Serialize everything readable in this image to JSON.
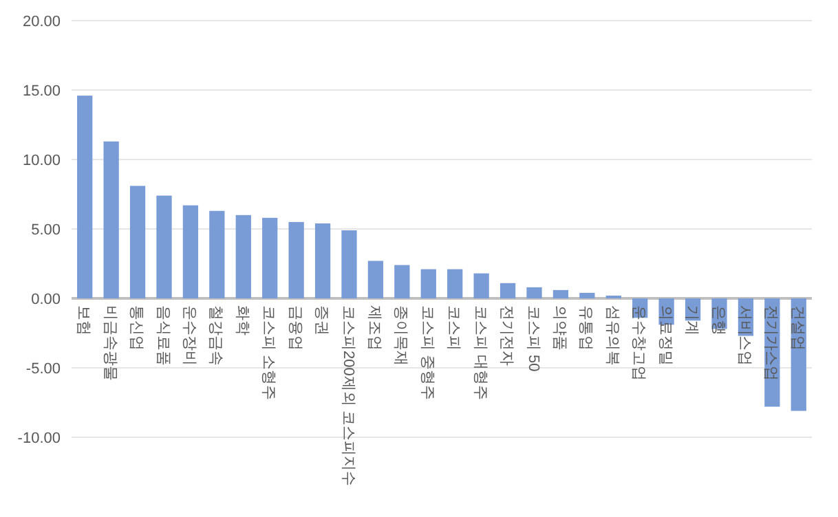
{
  "chart_data": {
    "type": "bar",
    "categories": [
      "보험",
      "비금속광물",
      "통신업",
      "음식료품",
      "운수장비",
      "철강금속",
      "화학",
      "코스피 소형주",
      "금융업",
      "증권",
      "코스피200제외 코스피지수",
      "제조업",
      "종이목재",
      "코스피 중형주",
      "코스피",
      "코스피 대형주",
      "전기전자",
      "코스피 50",
      "의약품",
      "유통업",
      "섬유의복",
      "운수창고업",
      "의료정밀",
      "기계",
      "은행",
      "서비스업",
      "전기가스업",
      "건설업"
    ],
    "values": [
      14.6,
      11.3,
      8.1,
      7.4,
      6.7,
      6.3,
      6.0,
      5.8,
      5.5,
      5.4,
      4.9,
      2.7,
      2.4,
      2.1,
      2.1,
      1.8,
      1.1,
      0.8,
      0.6,
      0.4,
      0.2,
      -1.4,
      -1.9,
      -1.6,
      -2.2,
      -2.7,
      -7.8,
      -8.1
    ],
    "color": "#7a9cd6",
    "ylim": [
      -10,
      20
    ],
    "yticks": [
      {
        "value": -10,
        "label": "-10.00"
      },
      {
        "value": -5,
        "label": "-5.00"
      },
      {
        "value": 0,
        "label": "0.00"
      },
      {
        "value": 5,
        "label": "5.00"
      },
      {
        "value": 10,
        "label": "10.00"
      },
      {
        "value": 15,
        "label": "15.00"
      },
      {
        "value": 20,
        "label": "20.00"
      }
    ],
    "grid": "y"
  }
}
